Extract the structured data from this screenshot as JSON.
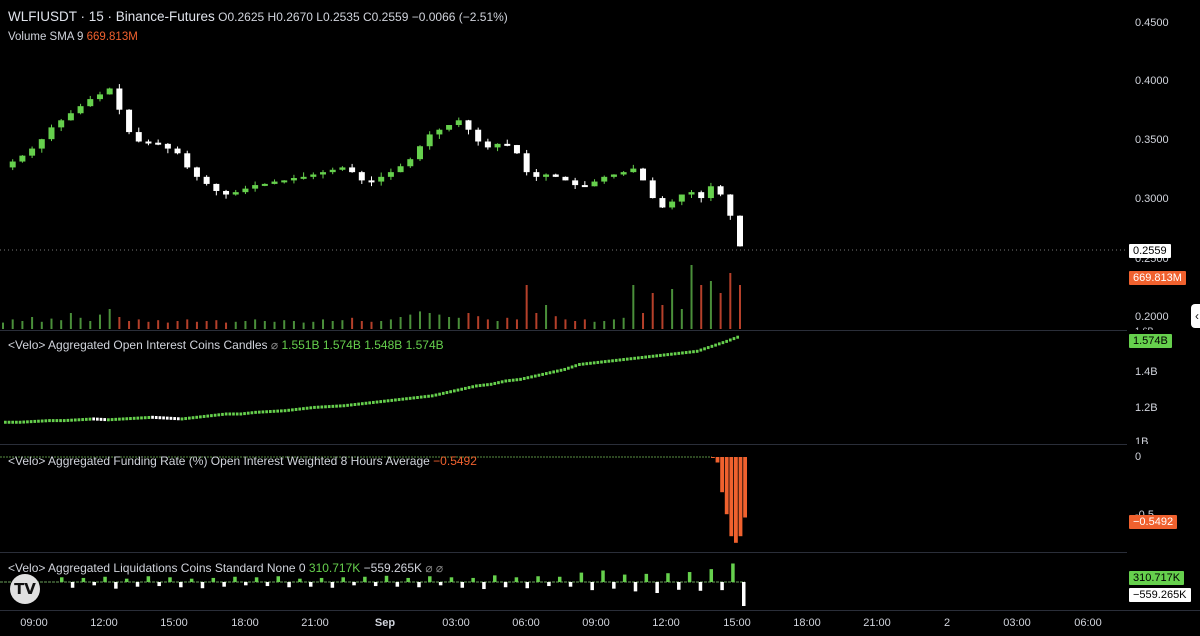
{
  "header": {
    "symbol": "WLFIUSDT · 15 · Binance-Futures",
    "open": "O0.2625",
    "high": "H0.2670",
    "low": "L0.2535",
    "close": "C0.2559",
    "change": "−0.0066 (−2.51%)",
    "volume_label": "Volume SMA 9",
    "volume_value": "669.813M"
  },
  "price_axis": {
    "ticks": [
      "0.4500",
      "0.4000",
      "0.3500",
      "0.3000",
      "0.2500",
      "0.2000"
    ],
    "last_price": "0.2559",
    "volume_badge": "669.813M",
    "partial_tick": "1.6B"
  },
  "oi_pane": {
    "label": "<Velo> Aggregated Open Interest Coins Candles",
    "sym": "⌀",
    "o": "1.551B",
    "h": "1.574B",
    "l": "1.548B",
    "c": "1.574B",
    "ticks": [
      "1.4B",
      "1.2B",
      "1B"
    ],
    "badge": "1.574B"
  },
  "funding_pane": {
    "label": "<Velo> Aggregated Funding Rate (%) Open Interest Weighted 8 Hours Average",
    "value": "−0.5492",
    "ticks": [
      "0",
      "-0.5"
    ],
    "badge": "−0.5492"
  },
  "liq_pane": {
    "label": "<Velo> Aggregated Liquidations Coins Standard None 0",
    "long_value": "310.717K",
    "short_value": "−559.265K",
    "syms": "⌀ ⌀",
    "badge_long": "310.717K",
    "badge_short": "−559.265K"
  },
  "time_axis": [
    {
      "label": "09:00",
      "bold": false
    },
    {
      "label": "12:00",
      "bold": false
    },
    {
      "label": "15:00",
      "bold": false
    },
    {
      "label": "18:00",
      "bold": false
    },
    {
      "label": "21:00",
      "bold": false
    },
    {
      "label": "Sep",
      "bold": true
    },
    {
      "label": "03:00",
      "bold": false
    },
    {
      "label": "06:00",
      "bold": false
    },
    {
      "label": "09:00",
      "bold": false
    },
    {
      "label": "12:00",
      "bold": false
    },
    {
      "label": "15:00",
      "bold": false
    },
    {
      "label": "18:00",
      "bold": false
    },
    {
      "label": "21:00",
      "bold": false
    },
    {
      "label": "2",
      "bold": false
    },
    {
      "label": "03:00",
      "bold": false
    },
    {
      "label": "06:00",
      "bold": false
    }
  ],
  "logo": "TV",
  "collapse_glyph": "‹",
  "colors": {
    "up": "#66d04d",
    "down": "#ffffff",
    "volume_badge": "#f0612e",
    "funding": "#f0612e"
  },
  "chart_data": {
    "type": "candlestick",
    "price_path": [
      0.326,
      0.331,
      0.336,
      0.342,
      0.35,
      0.36,
      0.366,
      0.372,
      0.378,
      0.384,
      0.388,
      0.393,
      0.375,
      0.356,
      0.348,
      0.347,
      0.346,
      0.342,
      0.338,
      0.326,
      0.318,
      0.312,
      0.306,
      0.303,
      0.305,
      0.308,
      0.311,
      0.312,
      0.314,
      0.315,
      0.317,
      0.318,
      0.32,
      0.322,
      0.324,
      0.326,
      0.322,
      0.315,
      0.314,
      0.318,
      0.322,
      0.327,
      0.333,
      0.344,
      0.354,
      0.358,
      0.362,
      0.366,
      0.358,
      0.348,
      0.343,
      0.346,
      0.345,
      0.338,
      0.322,
      0.318,
      0.32,
      0.318,
      0.315,
      0.311,
      0.31,
      0.314,
      0.318,
      0.32,
      0.322,
      0.325,
      0.315,
      0.3,
      0.292,
      0.297,
      0.303,
      0.305,
      0.3,
      0.31,
      0.303,
      0.285,
      0.259
    ],
    "volume_rel": [
      0.08,
      0.12,
      0.1,
      0.15,
      0.09,
      0.13,
      0.11,
      0.2,
      0.14,
      0.1,
      0.18,
      0.25,
      0.15,
      0.1,
      0.12,
      0.09,
      0.11,
      0.08,
      0.1,
      0.12,
      0.09,
      0.1,
      0.11,
      0.08,
      0.09,
      0.1,
      0.12,
      0.1,
      0.09,
      0.11,
      0.1,
      0.08,
      0.09,
      0.12,
      0.1,
      0.11,
      0.14,
      0.1,
      0.09,
      0.1,
      0.12,
      0.15,
      0.18,
      0.22,
      0.2,
      0.18,
      0.15,
      0.14,
      0.2,
      0.16,
      0.12,
      0.1,
      0.14,
      0.12,
      0.55,
      0.2,
      0.3,
      0.16,
      0.12,
      0.1,
      0.12,
      0.09,
      0.1,
      0.12,
      0.14,
      0.55,
      0.2,
      0.45,
      0.3,
      0.5,
      0.25,
      0.8,
      0.55,
      0.6,
      0.45,
      0.7,
      0.55
    ],
    "open_interest_b": [
      1.05,
      1.05,
      1.055,
      1.06,
      1.06,
      1.065,
      1.07,
      1.065,
      1.07,
      1.075,
      1.08,
      1.075,
      1.07,
      1.08,
      1.09,
      1.1,
      1.1,
      1.11,
      1.115,
      1.12,
      1.13,
      1.14,
      1.145,
      1.15,
      1.16,
      1.17,
      1.18,
      1.19,
      1.2,
      1.21,
      1.23,
      1.25,
      1.27,
      1.28,
      1.3,
      1.31,
      1.33,
      1.35,
      1.37,
      1.4,
      1.41,
      1.42,
      1.43,
      1.44,
      1.45,
      1.46,
      1.47,
      1.48,
      1.51,
      1.54,
      1.574
    ],
    "funding_rate": [
      0,
      -0.05,
      -0.32,
      -0.52,
      -0.72,
      -0.78,
      -0.72,
      -0.55
    ],
    "liquidations_k": [
      20,
      -30,
      15,
      -10,
      25,
      -40,
      10,
      -20,
      30,
      -15,
      20,
      -25,
      10,
      -35,
      15,
      -20,
      25,
      -10,
      20,
      -15,
      30,
      -25,
      10,
      -20,
      15,
      -30,
      20,
      -10,
      25,
      -15,
      35,
      -20,
      15,
      -25,
      30,
      -10,
      20,
      -30,
      15,
      -45,
      40,
      -25,
      20,
      -35,
      30,
      -15,
      25,
      -20,
      80,
      -60,
      120,
      -40,
      50,
      -80,
      60,
      -110,
      70,
      -55,
      90,
      -70,
      150,
      -60,
      310.717,
      -559.265
    ]
  }
}
